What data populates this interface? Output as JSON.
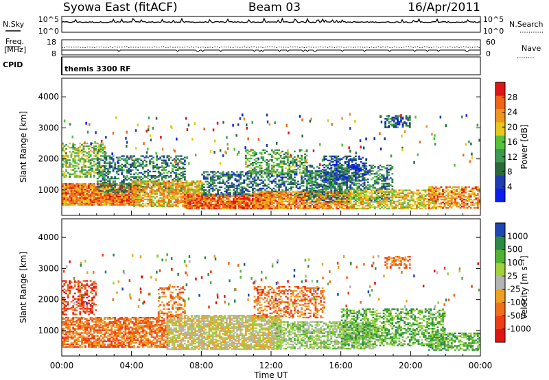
{
  "header": {
    "station": "Syowa East (fitACF)",
    "beam": "Beam 03",
    "date": "16/Apr/2011"
  },
  "noise_panel": {
    "left_label": "N.Sky",
    "right_label": "N.Search",
    "ticks": [
      "10^5",
      "10^0"
    ]
  },
  "freq_panel": {
    "left_label_line1": "Freq.",
    "left_label_line2": "[MHz]",
    "left_ticks": [
      "18",
      "8"
    ],
    "right_label": "Nave",
    "right_ticks": [
      "60",
      "0"
    ]
  },
  "cpid_panel": {
    "label": "CPID",
    "mode": "themis 3300 RF"
  },
  "colors": {
    "power_scale": [
      "#0a1ef0",
      "#1e3cb4",
      "#2a6a3a",
      "#3c9a50",
      "#56c23a",
      "#e6c81e",
      "#f0961e",
      "#f06418",
      "#e11414"
    ],
    "velocity_scale": [
      "#e11414",
      "#f03c14",
      "#f06e1e",
      "#f0a01e",
      "#b4b4b4",
      "#a0d23c",
      "#50b432",
      "#2a8a46",
      "#1e46b4"
    ],
    "background_axes": "#000000"
  },
  "chart_data": [
    {
      "type": "heatmap",
      "title": "",
      "ylabel": "Slant Range [km]",
      "xlabel": "",
      "x_range_hours": [
        0,
        24
      ],
      "y_range_km": [
        180,
        4600
      ],
      "yticks": [
        1000,
        2000,
        3000,
        4000
      ],
      "quantity": "Power",
      "colorbar_label": "Power [dB]",
      "colorbar_range": [
        0,
        32
      ],
      "colorbar_ticks": [
        "4",
        "8",
        "12",
        "16",
        "20",
        "24",
        "28"
      ],
      "bands": [
        {
          "t0": 0.0,
          "t1": 4.5,
          "r0": 500,
          "r1": 1200,
          "dens": 0.9,
          "v": 25
        },
        {
          "t0": 0.0,
          "t1": 2.5,
          "r0": 1400,
          "r1": 2500,
          "dens": 0.5,
          "v": 16
        },
        {
          "t0": 2.0,
          "t1": 7.0,
          "r0": 900,
          "r1": 2100,
          "dens": 0.45,
          "v": 10
        },
        {
          "t0": 4.0,
          "t1": 8.0,
          "r0": 450,
          "r1": 1300,
          "dens": 0.7,
          "v": 22
        },
        {
          "t0": 7.0,
          "t1": 12.0,
          "r0": 380,
          "r1": 850,
          "dens": 0.85,
          "v": 26
        },
        {
          "t0": 8.0,
          "t1": 16.5,
          "r0": 800,
          "r1": 1600,
          "dens": 0.5,
          "v": 9
        },
        {
          "t0": 11.0,
          "t1": 16.5,
          "r0": 380,
          "r1": 950,
          "dens": 0.8,
          "v": 24
        },
        {
          "t0": 10.5,
          "t1": 14.0,
          "r0": 1500,
          "r1": 2300,
          "dens": 0.45,
          "v": 14
        },
        {
          "t0": 14.0,
          "t1": 19.0,
          "r0": 600,
          "r1": 1800,
          "dens": 0.45,
          "v": 10
        },
        {
          "t0": 16.5,
          "t1": 21.5,
          "r0": 380,
          "r1": 1000,
          "dens": 0.6,
          "v": 20
        },
        {
          "t0": 18.5,
          "t1": 20.0,
          "r0": 3000,
          "r1": 3400,
          "dens": 0.5,
          "v": 7
        },
        {
          "t0": 21.0,
          "t1": 24.0,
          "r0": 400,
          "r1": 1100,
          "dens": 0.6,
          "v": 24
        },
        {
          "t0": 15.0,
          "t1": 17.5,
          "r0": 1300,
          "r1": 2100,
          "dens": 0.4,
          "v": 6
        }
      ]
    },
    {
      "type": "heatmap",
      "title": "",
      "ylabel": "Slant Range [km]",
      "xlabel": "Time UT",
      "x_range_hours": [
        0,
        24
      ],
      "y_range_km": [
        180,
        4600
      ],
      "yticks": [
        1000,
        2000,
        3000,
        4000
      ],
      "xticks": [
        "00:00",
        "04:00",
        "08:00",
        "12:00",
        "16:00",
        "20:00",
        "00:00"
      ],
      "quantity": "Velocity",
      "colorbar_label": "Velocity [m s⁻¹]",
      "colorbar_ticks": [
        "1000",
        "500",
        "100",
        "25",
        "-25",
        "-100",
        "-500",
        "-1000"
      ],
      "bands": [
        {
          "t0": 0.0,
          "t1": 6.0,
          "r0": 450,
          "r1": 1400,
          "dens": 0.7,
          "v": 2
        },
        {
          "t0": 0.0,
          "t1": 2.0,
          "r0": 1500,
          "r1": 2600,
          "dens": 0.4,
          "v": 1
        },
        {
          "t0": 6.0,
          "t1": 12.5,
          "r0": 380,
          "r1": 1500,
          "dens": 0.75,
          "v": 4
        },
        {
          "t0": 11.0,
          "t1": 15.0,
          "r0": 1400,
          "r1": 2400,
          "dens": 0.4,
          "v": 2
        },
        {
          "t0": 12.0,
          "t1": 18.0,
          "r0": 400,
          "r1": 1300,
          "dens": 0.6,
          "v": 5
        },
        {
          "t0": 16.0,
          "t1": 22.0,
          "r0": 500,
          "r1": 1700,
          "dens": 0.5,
          "v": 6
        },
        {
          "t0": 18.5,
          "t1": 20.0,
          "r0": 3000,
          "r1": 3400,
          "dens": 0.4,
          "v": 2
        },
        {
          "t0": 21.0,
          "t1": 24.0,
          "r0": 350,
          "r1": 900,
          "dens": 0.6,
          "v": 6
        },
        {
          "t0": 5.5,
          "t1": 7.0,
          "r0": 1400,
          "r1": 2400,
          "dens": 0.35,
          "v": 2
        }
      ]
    }
  ]
}
